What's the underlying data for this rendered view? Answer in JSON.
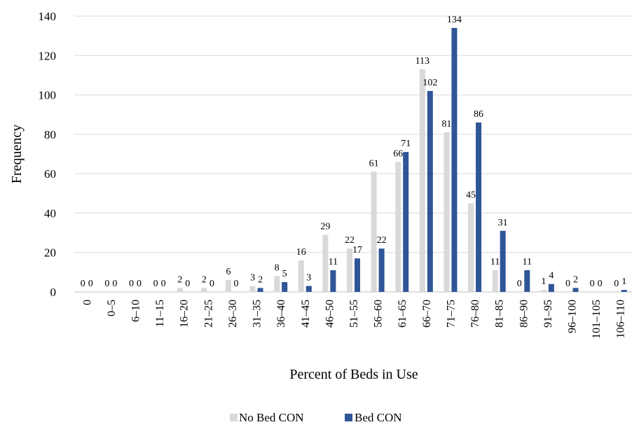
{
  "chart_data": {
    "type": "bar",
    "xlabel": "Percent of Beds in Use",
    "ylabel": "Frequency",
    "ylim": [
      0,
      140
    ],
    "yticks": [
      0,
      20,
      40,
      60,
      80,
      100,
      120,
      140
    ],
    "grid": "horizontal",
    "legend_position": "bottom",
    "categories": [
      "0",
      "0–5",
      "6–10",
      "11–15",
      "16–20",
      "21–25",
      "26–30",
      "31–35",
      "36–40",
      "41–45",
      "46–50",
      "51–55",
      "56–60",
      "61–65",
      "66–70",
      "71–75",
      "76–80",
      "81–85",
      "86–90",
      "91–95",
      "96–100",
      "101–105",
      "106–110"
    ],
    "series": [
      {
        "name": "No Bed CON",
        "color": "#d9d9d9",
        "values": [
          0,
          0,
          0,
          0,
          2,
          2,
          6,
          3,
          8,
          16,
          29,
          22,
          61,
          66,
          113,
          81,
          45,
          11,
          0,
          1,
          0,
          0,
          0
        ]
      },
      {
        "name": "Bed CON",
        "color": "#2f5597",
        "values": [
          0,
          0,
          0,
          0,
          0,
          0,
          0,
          2,
          5,
          3,
          11,
          17,
          22,
          71,
          102,
          134,
          86,
          31,
          11,
          4,
          2,
          0,
          1
        ]
      }
    ]
  }
}
